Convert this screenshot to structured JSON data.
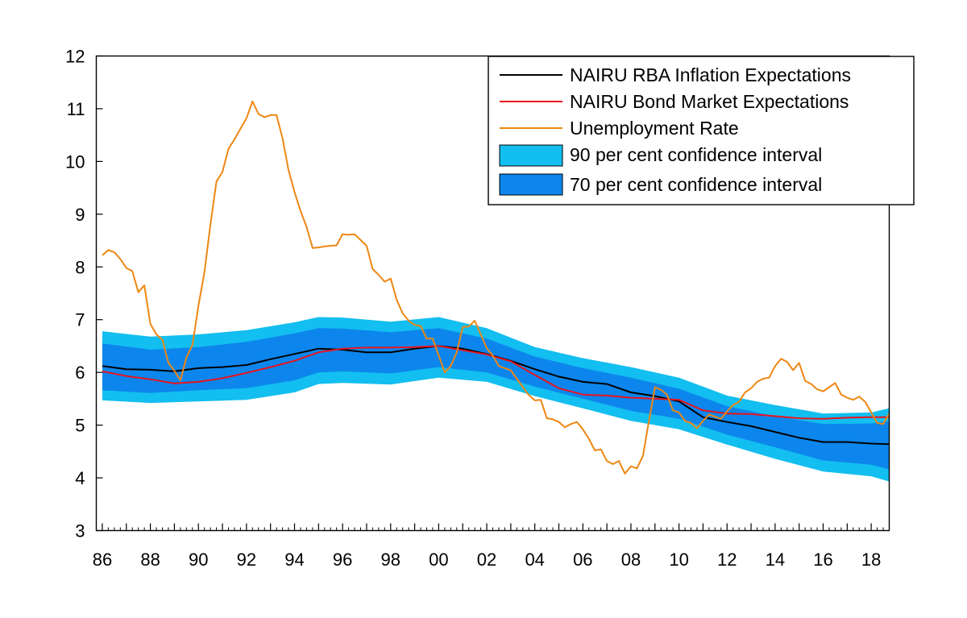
{
  "chart_data": {
    "type": "line",
    "title": "",
    "xlabel": "",
    "ylabel": "",
    "xlim": [
      1985.75,
      2018.75
    ],
    "ylim": [
      3,
      12
    ],
    "yticks": [
      3,
      4,
      5,
      6,
      7,
      8,
      9,
      10,
      11,
      12
    ],
    "xticks": [
      {
        "year": 1986,
        "label": "86"
      },
      {
        "year": 1988,
        "label": "88"
      },
      {
        "year": 1990,
        "label": "90"
      },
      {
        "year": 1992,
        "label": "92"
      },
      {
        "year": 1994,
        "label": "94"
      },
      {
        "year": 1996,
        "label": "96"
      },
      {
        "year": 1998,
        "label": "98"
      },
      {
        "year": 2000,
        "label": "00"
      },
      {
        "year": 2002,
        "label": "02"
      },
      {
        "year": 2004,
        "label": "04"
      },
      {
        "year": 2006,
        "label": "06"
      },
      {
        "year": 2008,
        "label": "08"
      },
      {
        "year": 2010,
        "label": "10"
      },
      {
        "year": 2012,
        "label": "12"
      },
      {
        "year": 2014,
        "label": "14"
      },
      {
        "year": 2016,
        "label": "16"
      },
      {
        "year": 2018,
        "label": "18"
      }
    ],
    "legend_position": "top-right",
    "grid": false,
    "band_years": [
      1986,
      1988,
      1990,
      1992,
      1994,
      1995,
      1996,
      1998,
      2000,
      2002,
      2004,
      2006,
      2008,
      2010,
      2012,
      2014,
      2016,
      2018,
      2018.75
    ],
    "bands": [
      {
        "name": "90 per cent confidence interval",
        "color": "#13bef0",
        "upper": [
          6.78,
          6.68,
          6.72,
          6.8,
          6.95,
          7.05,
          7.04,
          6.96,
          7.05,
          6.84,
          6.48,
          6.27,
          6.1,
          5.9,
          5.56,
          5.38,
          5.22,
          5.24,
          5.32
        ],
        "lower": [
          5.47,
          5.42,
          5.45,
          5.48,
          5.62,
          5.78,
          5.8,
          5.77,
          5.9,
          5.82,
          5.55,
          5.32,
          5.08,
          4.92,
          4.63,
          4.36,
          4.12,
          4.03,
          3.93
        ]
      },
      {
        "name": "70 per cent confidence interval",
        "color": "#0c86ec",
        "upper": [
          6.55,
          6.43,
          6.48,
          6.58,
          6.74,
          6.84,
          6.83,
          6.76,
          6.84,
          6.64,
          6.3,
          6.08,
          5.9,
          5.69,
          5.36,
          5.17,
          5.02,
          5.03,
          5.08
        ],
        "lower": [
          5.66,
          5.61,
          5.66,
          5.7,
          5.85,
          6.0,
          6.02,
          5.98,
          6.1,
          6.0,
          5.73,
          5.5,
          5.27,
          5.12,
          4.82,
          4.58,
          4.33,
          4.25,
          4.16
        ]
      }
    ],
    "series": [
      {
        "name": "NAIRU RBA Inflation Expectations",
        "color": "#000000",
        "x": [
          1986,
          1987,
          1988,
          1989,
          1990,
          1991,
          1992,
          1993,
          1994,
          1995,
          1996,
          1997,
          1998,
          1999,
          2000,
          2001,
          2002,
          2003,
          2004,
          2005,
          2006,
          2007,
          2008,
          2009,
          2010,
          2011,
          2012,
          2013,
          2014,
          2015,
          2016,
          2017,
          2018,
          2018.75
        ],
        "y": [
          6.12,
          6.06,
          6.05,
          6.02,
          6.08,
          6.1,
          6.14,
          6.25,
          6.35,
          6.45,
          6.43,
          6.38,
          6.38,
          6.45,
          6.5,
          6.45,
          6.35,
          6.22,
          6.06,
          5.92,
          5.82,
          5.78,
          5.62,
          5.55,
          5.45,
          5.15,
          5.06,
          4.98,
          4.87,
          4.76,
          4.68,
          4.68,
          4.65,
          4.64
        ]
      },
      {
        "name": "NAIRU Bond Market Expectations",
        "color": "#e8141e",
        "x": [
          1986,
          1987,
          1988,
          1989,
          1990,
          1991,
          1992,
          1993,
          1994,
          1995,
          1996,
          1997,
          1998,
          1999,
          2000,
          2001,
          2002,
          2003,
          2004,
          2005,
          2006,
          2007,
          2008,
          2009,
          2010,
          2011,
          2012,
          2013,
          2014,
          2015,
          2016,
          2017,
          2018,
          2018.75
        ],
        "y": [
          6.02,
          5.93,
          5.87,
          5.79,
          5.82,
          5.89,
          5.99,
          6.1,
          6.22,
          6.38,
          6.45,
          6.47,
          6.47,
          6.48,
          6.5,
          6.42,
          6.34,
          6.21,
          5.95,
          5.7,
          5.58,
          5.56,
          5.52,
          5.5,
          5.48,
          5.28,
          5.22,
          5.21,
          5.17,
          5.13,
          5.12,
          5.14,
          5.15,
          5.15
        ]
      },
      {
        "name": "Unemployment Rate",
        "color": "#ee8713",
        "x": [
          1986,
          1986.25,
          1986.5,
          1986.75,
          1987,
          1987.25,
          1987.5,
          1987.75,
          1988,
          1988.25,
          1988.5,
          1988.75,
          1989,
          1989.25,
          1989.5,
          1989.75,
          1990,
          1990.25,
          1990.5,
          1990.75,
          1991,
          1991.25,
          1991.5,
          1991.75,
          1992,
          1992.25,
          1992.5,
          1992.75,
          1993,
          1993.25,
          1993.5,
          1993.75,
          1994,
          1994.25,
          1994.5,
          1994.75,
          1995,
          1995.25,
          1995.5,
          1995.75,
          1996,
          1996.25,
          1996.5,
          1996.75,
          1997,
          1997.25,
          1997.5,
          1997.75,
          1998,
          1998.25,
          1998.5,
          1998.75,
          1999,
          1999.25,
          1999.5,
          1999.75,
          2000,
          2000.25,
          2000.5,
          2000.75,
          2001,
          2001.25,
          2001.5,
          2001.75,
          2002,
          2002.25,
          2002.5,
          2002.75,
          2003,
          2003.25,
          2003.5,
          2003.75,
          2004,
          2004.25,
          2004.5,
          2004.75,
          2005,
          2005.25,
          2005.5,
          2005.75,
          2006,
          2006.25,
          2006.5,
          2006.75,
          2007,
          2007.25,
          2007.5,
          2007.75,
          2008,
          2008.25,
          2008.5,
          2008.75,
          2009,
          2009.25,
          2009.5,
          2009.75,
          2010,
          2010.25,
          2010.5,
          2010.75,
          2011,
          2011.25,
          2011.5,
          2011.75,
          2012,
          2012.25,
          2012.5,
          2012.75,
          2013,
          2013.25,
          2013.5,
          2013.75,
          2014,
          2014.25,
          2014.5,
          2014.75,
          2015,
          2015.25,
          2015.5,
          2015.75,
          2016,
          2016.25,
          2016.5,
          2016.75,
          2017,
          2017.25,
          2017.5,
          2017.75,
          2018,
          2018.25,
          2018.5,
          2018.75
        ],
        "y": [
          8.22,
          8.32,
          8.28,
          8.15,
          7.98,
          7.92,
          7.52,
          7.65,
          6.92,
          6.72,
          6.62,
          6.18,
          6.03,
          5.85,
          6.28,
          6.52,
          7.26,
          7.9,
          8.8,
          9.62,
          9.8,
          10.24,
          10.42,
          10.62,
          10.82,
          11.14,
          10.9,
          10.84,
          10.88,
          10.88,
          10.44,
          9.84,
          9.42,
          9.06,
          8.76,
          8.36,
          8.37,
          8.39,
          8.4,
          8.41,
          8.62,
          8.61,
          8.62,
          8.51,
          8.4,
          7.96,
          7.85,
          7.72,
          7.78,
          7.38,
          7.12,
          6.98,
          6.9,
          6.88,
          6.64,
          6.64,
          6.32,
          6.0,
          6.12,
          6.38,
          6.86,
          6.87,
          6.98,
          6.72,
          6.46,
          6.32,
          6.12,
          6.08,
          6.04,
          5.88,
          5.72,
          5.57,
          5.47,
          5.48,
          5.13,
          5.11,
          5.06,
          4.96,
          5.02,
          5.06,
          4.92,
          4.74,
          4.52,
          4.54,
          4.32,
          4.26,
          4.32,
          4.08,
          4.22,
          4.18,
          4.42,
          5.08,
          5.72,
          5.67,
          5.58,
          5.28,
          5.24,
          5.08,
          5.04,
          4.94,
          5.08,
          5.2,
          5.16,
          5.12,
          5.26,
          5.38,
          5.44,
          5.62,
          5.7,
          5.82,
          5.88,
          5.9,
          6.12,
          6.26,
          6.2,
          6.04,
          6.18,
          5.84,
          5.78,
          5.68,
          5.64,
          5.72,
          5.8,
          5.58,
          5.52,
          5.48,
          5.54,
          5.44,
          5.24,
          5.04,
          5.02,
          5.22
        ]
      }
    ]
  }
}
